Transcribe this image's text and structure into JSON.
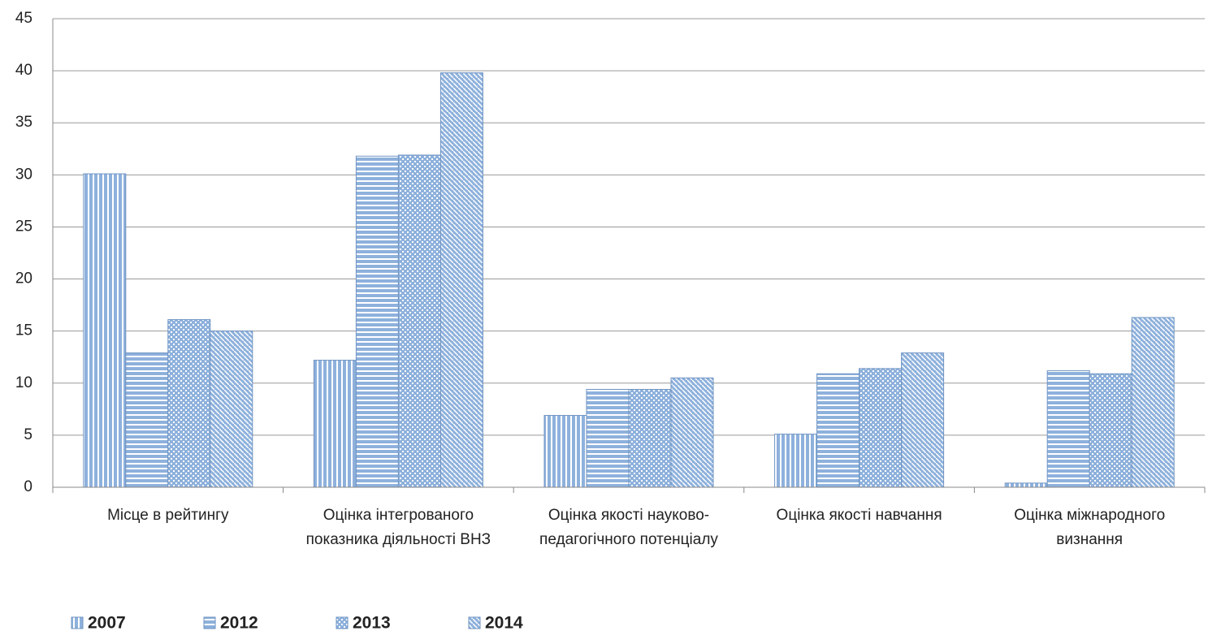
{
  "chart_data": {
    "type": "bar",
    "categories": [
      "Місце в рейтингу",
      "Оцінка інтегрованого показника діяльності ВНЗ",
      "Оцінка якості науково-педагогічного потенціалу",
      "Оцінка якості навчання",
      "Оцінка міжнародного визнання"
    ],
    "series": [
      {
        "name": "2007",
        "color": "#8eb1dc",
        "pattern": "vertical",
        "values": [
          30.1,
          12.2,
          6.9,
          5.1,
          0.4
        ]
      },
      {
        "name": "2012",
        "color": "#8eb1dc",
        "pattern": "horizontal",
        "values": [
          12.9,
          31.8,
          9.4,
          10.9,
          11.2
        ]
      },
      {
        "name": "2013",
        "color": "#8eb1dc",
        "pattern": "dots",
        "values": [
          16.1,
          31.9,
          9.4,
          11.4,
          10.9
        ]
      },
      {
        "name": "2014",
        "color": "#8eb1dc",
        "pattern": "diagonal",
        "values": [
          15.0,
          39.8,
          10.5,
          12.9,
          16.3
        ]
      }
    ],
    "ylim": [
      0,
      45
    ],
    "yticks": [
      0,
      5,
      10,
      15,
      20,
      25,
      30,
      35,
      40,
      45
    ],
    "grid": true,
    "legend": "bottom-left"
  }
}
